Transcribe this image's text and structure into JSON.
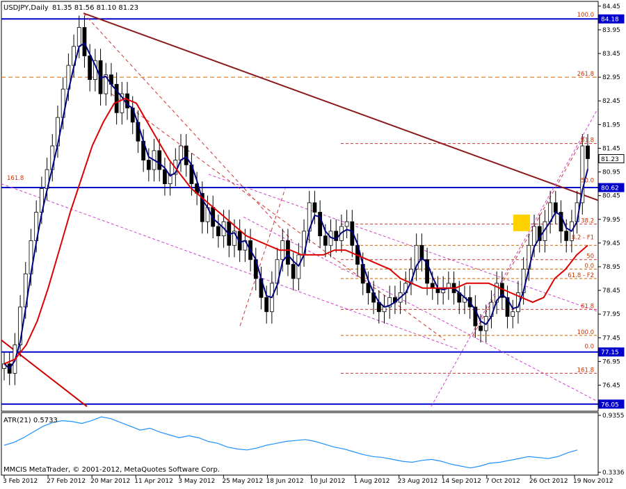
{
  "header": {
    "symbol": "USDJPY,Daily",
    "ohlc": "81.35 81.56 81.10 81.23"
  },
  "footer": {
    "copyright": "MMCIS MetaTrader, © 2001-2012, MetaQuotes Software Corp."
  },
  "chart_data": [
    {
      "type": "candlestick",
      "symbol": "USDJPY",
      "timeframe": "Daily",
      "ylim": [
        76.05,
        84.45
      ],
      "price_ticks": [
        "84.45",
        "83.95",
        "83.45",
        "82.95",
        "82.45",
        "81.95",
        "81.45",
        "80.95",
        "80.45",
        "79.95",
        "79.45",
        "78.95",
        "78.45",
        "77.95",
        "77.45",
        "76.95",
        "76.45"
      ],
      "date_ticks": [
        "3 Feb 2012",
        "27 Feb 2012",
        "20 Mar 2012",
        "11 Apr 2012",
        "3 May 2012",
        "25 May 2012",
        "18 Jun 2012",
        "10 Jul 2012",
        "1 Aug 2012",
        "23 Aug 2012",
        "14 Sep 2012",
        "7 Oct 2012",
        "26 Oct 2012",
        "19 Nov 2012"
      ],
      "price_markers": [
        {
          "label": "84.18",
          "value": 84.18
        },
        {
          "label": "81.23",
          "value": 81.23
        },
        {
          "label": "80.62",
          "value": 80.62
        },
        {
          "label": "77.15",
          "value": 77.15
        },
        {
          "label": "76.05",
          "value": 76.05
        }
      ],
      "horizontal_lines": [
        {
          "value": 84.18,
          "color": "#0000cc",
          "style": "solid"
        },
        {
          "value": 80.62,
          "color": "#0000cc",
          "style": "solid"
        },
        {
          "value": 77.15,
          "color": "#0000cc",
          "style": "solid"
        },
        {
          "value": 76.05,
          "color": "#0000cc",
          "style": "solid"
        },
        {
          "value": 82.95,
          "color": "#cc6600",
          "style": "dashed"
        }
      ],
      "fibonacci_labels": [
        {
          "text": "100.0",
          "price": 84.2
        },
        {
          "text": "261.8",
          "price": 82.95
        },
        {
          "text": "61.8",
          "price": 81.55
        },
        {
          "text": "50.0",
          "price": 80.7
        },
        {
          "text": "161.8",
          "price": 80.75
        },
        {
          "text": "38.2",
          "price": 79.85
        },
        {
          "text": "8.2 - F1",
          "price": 79.5
        },
        {
          "text": "50",
          "price": 79.1
        },
        {
          "text": "0.0",
          "price": 78.9
        },
        {
          "text": "61.8 - F2",
          "price": 78.7
        },
        {
          "text": "61.8",
          "price": 78.05
        },
        {
          "text": "100.0",
          "price": 77.5
        },
        {
          "text": "0.0",
          "price": 77.2
        },
        {
          "text": "161.8",
          "price": 76.7
        }
      ],
      "close_series": [
        76.9,
        76.7,
        77.3,
        78.1,
        78.8,
        79.5,
        80.1,
        80.6,
        81.0,
        81.5,
        82.1,
        82.7,
        83.2,
        83.6,
        84.0,
        83.4,
        82.9,
        83.3,
        82.6,
        83.0,
        82.8,
        82.2,
        82.6,
        82.3,
        82.0,
        81.6,
        81.2,
        81.0,
        81.4,
        81.0,
        80.7,
        80.9,
        81.2,
        81.5,
        81.1,
        80.7,
        80.5,
        79.9,
        80.2,
        79.8,
        79.6,
        79.9,
        79.4,
        79.7,
        79.3,
        79.5,
        79.1,
        78.7,
        78.3,
        78.0,
        78.6,
        79.1,
        79.5,
        79.0,
        78.7,
        79.2,
        79.7,
        80.3,
        80.1,
        79.6,
        79.4,
        79.7,
        79.5,
        79.8,
        79.9,
        79.4,
        79.0,
        78.6,
        78.4,
        78.2,
        78.0,
        78.1,
        78.3,
        78.2,
        78.4,
        78.6,
        78.9,
        79.4,
        79.1,
        78.6,
        78.5,
        78.4,
        78.5,
        78.6,
        78.4,
        78.2,
        78.3,
        78.1,
        77.7,
        77.6,
        77.9,
        78.2,
        78.6,
        78.3,
        77.9,
        78.0,
        78.4,
        78.9,
        79.4,
        79.8,
        79.5,
        79.9,
        80.3,
        80.1,
        79.7,
        79.5,
        79.9,
        80.3,
        81.5,
        81.23
      ],
      "sma_series": [
        76.9,
        77.0,
        77.3,
        77.8,
        78.5,
        79.3,
        80.1,
        80.8,
        81.5,
        82.0,
        82.4,
        82.5,
        82.4,
        82.0,
        81.6,
        81.2,
        80.9,
        80.6,
        80.4,
        80.2,
        80.0,
        79.8,
        79.6,
        79.5,
        79.4,
        79.3,
        79.3,
        79.2,
        79.2,
        79.2,
        79.3,
        79.3,
        79.2,
        79.1,
        79.0,
        78.9,
        78.7,
        78.6,
        78.5,
        78.5,
        78.5,
        78.5,
        78.6,
        78.6,
        78.6,
        78.5,
        78.4,
        78.3,
        78.2,
        78.3,
        78.7,
        78.9,
        79.2,
        79.4
      ],
      "atr": {
        "label": "ATR(21) 0.5733",
        "ylim": [
          0.3336,
          0.9355
        ],
        "ticks": [
          "0.9355",
          "0.3336"
        ],
        "values": [
          0.62,
          0.65,
          0.7,
          0.76,
          0.82,
          0.86,
          0.88,
          0.87,
          0.85,
          0.88,
          0.92,
          0.9,
          0.86,
          0.82,
          0.78,
          0.8,
          0.76,
          0.73,
          0.7,
          0.72,
          0.7,
          0.66,
          0.64,
          0.6,
          0.58,
          0.57,
          0.59,
          0.62,
          0.64,
          0.66,
          0.67,
          0.68,
          0.66,
          0.63,
          0.6,
          0.58,
          0.55,
          0.52,
          0.5,
          0.49,
          0.47,
          0.45,
          0.44,
          0.46,
          0.47,
          0.45,
          0.42,
          0.4,
          0.38,
          0.4,
          0.43,
          0.44,
          0.46,
          0.48,
          0.5,
          0.49,
          0.48,
          0.5,
          0.54,
          0.57
        ]
      }
    }
  ]
}
